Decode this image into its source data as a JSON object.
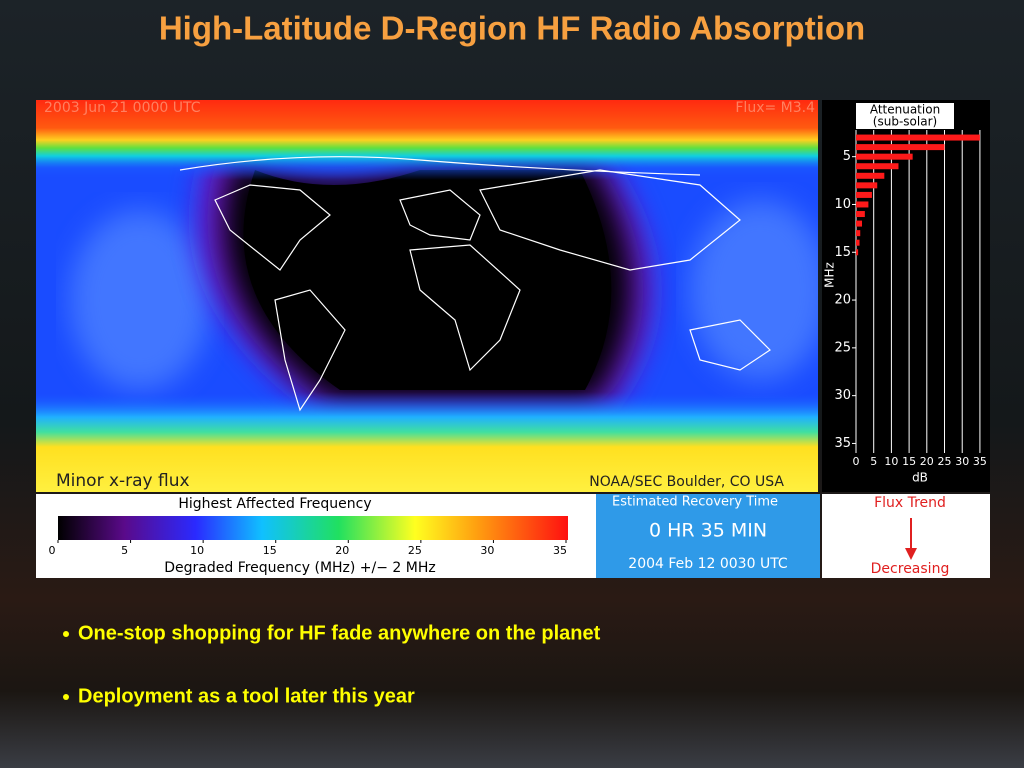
{
  "title": "High-Latitude D-Region HF Radio Absorption",
  "map": {
    "timestamp": "2003 Jun 21 0000 UTC",
    "flux": "Flux= M3.4",
    "xray_status": "Minor x-ray flux",
    "source": "NOAA/SEC Boulder, CO USA"
  },
  "attenuation": {
    "title": "Attenuation",
    "subtitle": "(sub-solar)",
    "y_label": "MHz",
    "x_label": "dB",
    "ylim": [
      2,
      36
    ],
    "yticks": [
      5,
      10,
      15,
      20,
      25,
      30,
      35
    ],
    "xlim": [
      0,
      37
    ],
    "xticks": [
      0,
      5,
      10,
      15,
      20,
      25,
      30,
      35
    ],
    "color": "#ff1a1a",
    "frequencies": [
      3,
      4,
      5,
      6,
      7,
      8,
      9,
      10,
      11,
      12,
      13,
      14,
      15
    ],
    "values": [
      35,
      25,
      16,
      12,
      8,
      6,
      4.5,
      3.5,
      2.5,
      1.7,
      1.2,
      1,
      0.6
    ]
  },
  "frequency_scale": {
    "title": "Highest Affected Frequency",
    "xlim": [
      0,
      35
    ],
    "xticks": [
      0,
      5,
      10,
      15,
      20,
      25,
      30,
      35
    ],
    "label": "Degraded Frequency (MHz) +/− 2 MHz"
  },
  "recovery": {
    "title": "Estimated Recovery Time",
    "time": "0 HR 35 MIN",
    "timestamp": "2004 Feb 12 0030 UTC"
  },
  "flux_trend": {
    "title": "Flux Trend",
    "value": "Decreasing"
  },
  "bullets": [
    "One-stop shopping for HF fade anywhere on the planet",
    "Deployment as a tool later this year"
  ]
}
